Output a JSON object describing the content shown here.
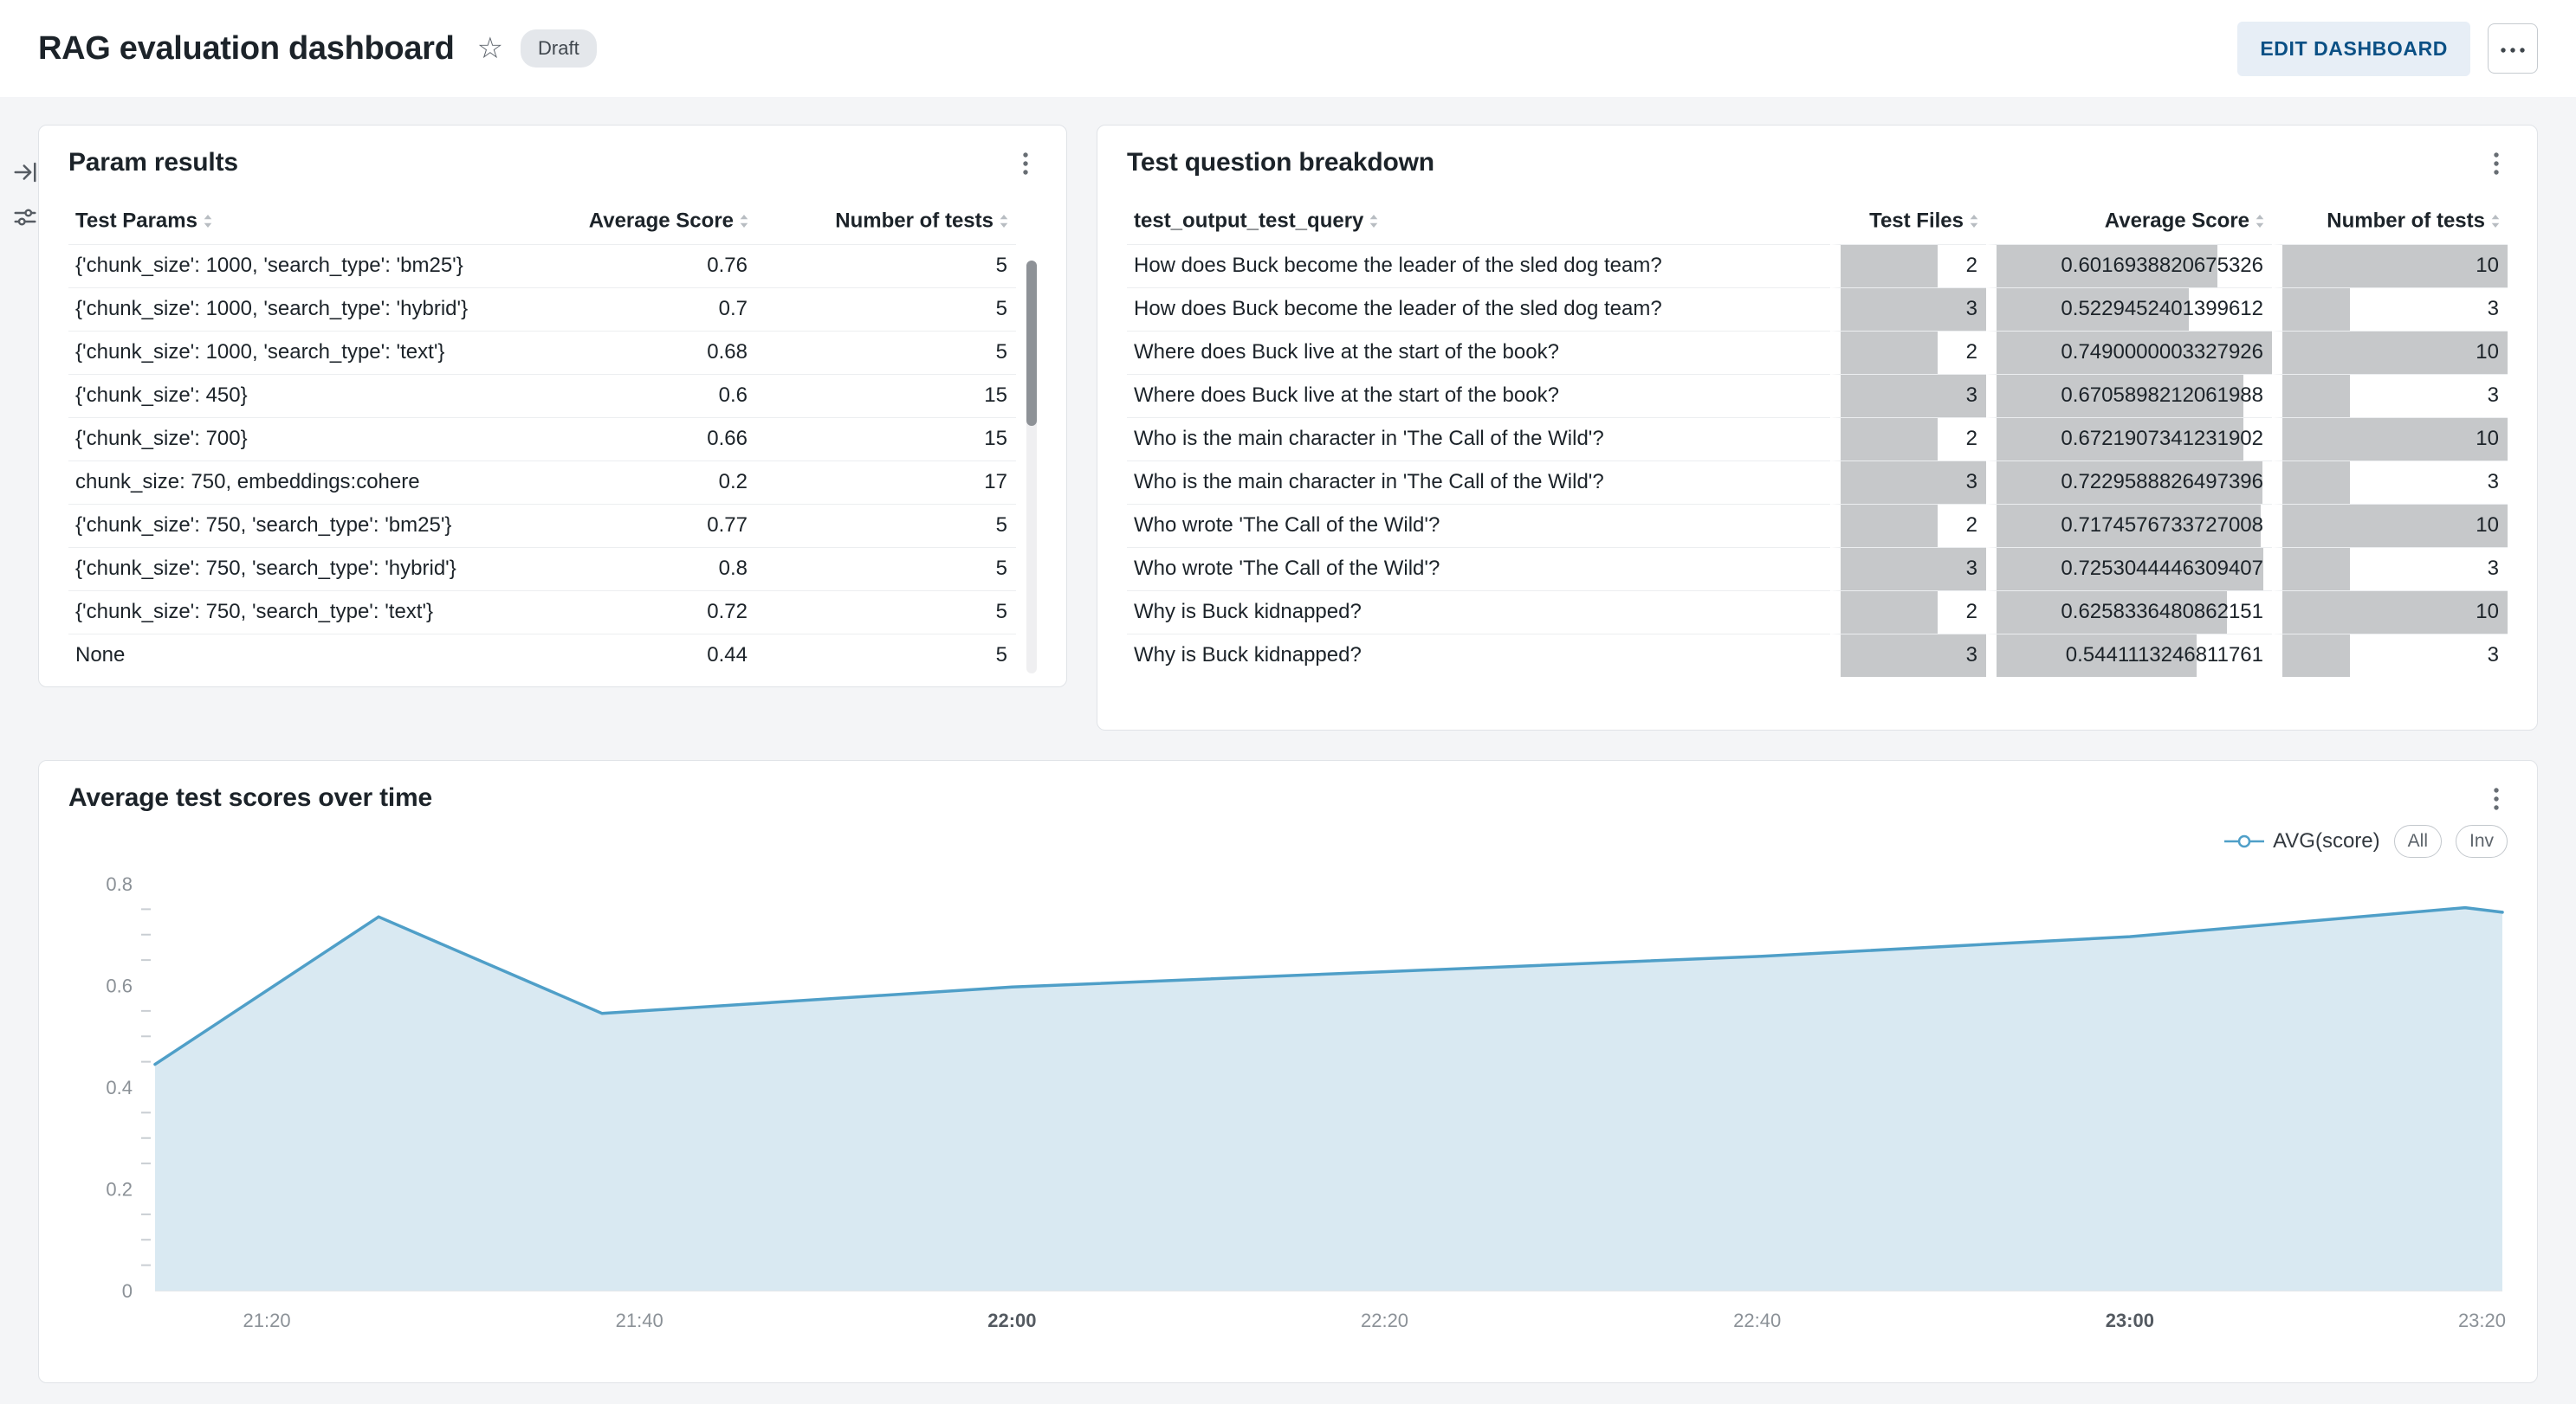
{
  "header": {
    "title": "RAG evaluation dashboard",
    "status_badge": "Draft",
    "edit_button_label": "EDIT DASHBOARD"
  },
  "icons": {
    "star": "☆",
    "kebab": "vertical-ellipsis",
    "more": "horizontal-ellipsis",
    "collapse_panel": "arrow-to-bar",
    "filters": "sliders",
    "sort": "up-down-arrows"
  },
  "colors": {
    "accent_blue": "#0b5085",
    "bar_gray": "#c6c8ca"
  },
  "param_results": {
    "title": "Param results",
    "columns": [
      "Test Params",
      "Average Score",
      "Number of tests"
    ],
    "rows": [
      [
        "{'chunk_size': 1000, 'search_type': 'bm25'}",
        "0.76",
        "5"
      ],
      [
        "{'chunk_size': 1000, 'search_type': 'hybrid'}",
        "0.7",
        "5"
      ],
      [
        "{'chunk_size': 1000, 'search_type': 'text'}",
        "0.68",
        "5"
      ],
      [
        "{'chunk_size': 450}",
        "0.6",
        "15"
      ],
      [
        "{'chunk_size': 700}",
        "0.66",
        "15"
      ],
      [
        "chunk_size: 750, embeddings:cohere",
        "0.2",
        "17"
      ],
      [
        "{'chunk_size': 750, 'search_type': 'bm25'}",
        "0.77",
        "5"
      ],
      [
        "{'chunk_size': 750, 'search_type': 'hybrid'}",
        "0.8",
        "5"
      ],
      [
        "{'chunk_size': 750, 'search_type': 'text'}",
        "0.72",
        "5"
      ],
      [
        "None",
        "0.44",
        "5"
      ]
    ]
  },
  "test_question_breakdown": {
    "title": "Test question breakdown",
    "columns": [
      "test_output_test_query",
      "Test Files",
      "Average Score",
      "Number of tests"
    ],
    "bar_max": {
      "test_files": 3,
      "avg_score": 0.7490000003327926,
      "num_tests": 10
    },
    "rows": [
      [
        "How does Buck become the leader of the sled dog team?",
        "2",
        "0.6016938820675326",
        "10"
      ],
      [
        "How does Buck become the leader of the sled dog team?",
        "3",
        "0.5229452401399612",
        "3"
      ],
      [
        "Where does Buck live at the start of the book?",
        "2",
        "0.7490000003327926",
        "10"
      ],
      [
        "Where does Buck live at the start of the book?",
        "3",
        "0.6705898212061988",
        "3"
      ],
      [
        "Who is the main character in 'The Call of the Wild'?",
        "2",
        "0.6721907341231902",
        "10"
      ],
      [
        "Who is the main character in 'The Call of the Wild'?",
        "3",
        "0.7229588826497396",
        "3"
      ],
      [
        "Who wrote 'The Call of the Wild'?",
        "2",
        "0.7174576733727008",
        "10"
      ],
      [
        "Who wrote 'The Call of the Wild'?",
        "3",
        "0.7253044446309407",
        "3"
      ],
      [
        "Why is Buck kidnapped?",
        "2",
        "0.6258336480862151",
        "10"
      ],
      [
        "Why is Buck kidnapped?",
        "3",
        "0.5441113246811761",
        "3"
      ]
    ]
  },
  "scores_chart": {
    "title": "Average test scores over time",
    "legend_label": "AVG(score)",
    "legend_all_label": "All",
    "legend_inv_label": "Inv"
  },
  "chart_data": {
    "type": "area",
    "title": "Average test scores over time",
    "series": [
      {
        "name": "AVG(score)",
        "points": [
          [
            "21:14",
            0.445
          ],
          [
            "21:26",
            0.735
          ],
          [
            "21:38",
            0.545
          ],
          [
            "22:00",
            0.597
          ],
          [
            "22:20",
            0.627
          ],
          [
            "22:40",
            0.657
          ],
          [
            "23:00",
            0.696
          ],
          [
            "23:18",
            0.753
          ],
          [
            "23:20",
            0.744
          ]
        ]
      }
    ],
    "x_range": [
      "21:14",
      "23:20"
    ],
    "x_ticks": [
      "21:20",
      "21:40",
      "22:00",
      "22:20",
      "22:40",
      "23:00",
      "23:20"
    ],
    "x_ticks_bold": [
      "22:00",
      "23:00"
    ],
    "ylim": [
      0,
      0.8
    ],
    "y_ticks": [
      "0",
      "0.2",
      "0.4",
      "0.6",
      "0.8"
    ],
    "y_minor_step": 0.05,
    "line_color": "#4f9fc8",
    "fill_color": "#d9e9f2",
    "grid": false,
    "legend_position": "top-right"
  }
}
